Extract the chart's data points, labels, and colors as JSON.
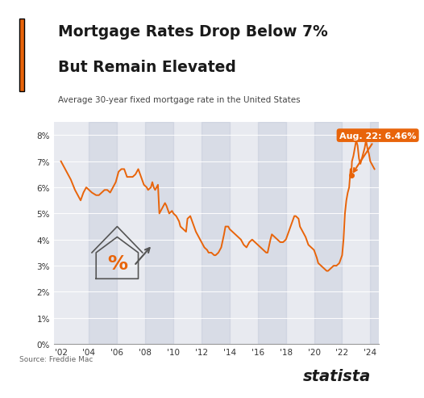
{
  "title_line1": "Mortgage Rates Drop Below 7%",
  "title_line2": "But Remain Elevated",
  "subtitle": "Average 30-year fixed mortgage rate in the United States",
  "annotation_label": "Aug. 22: 6.46%",
  "source": "Source: Freddie Mac",
  "brand": "statista",
  "line_color": "#E8640A",
  "background_color": "#FFFFFF",
  "plot_bg_color": "#E8EAF0",
  "title_color": "#1a1a1a",
  "subtitle_color": "#444444",
  "annotation_bg": "#E8640A",
  "annotation_text_color": "#FFFFFF",
  "accent_bar_color": "#E8640A",
  "yticks": [
    0,
    1,
    2,
    3,
    4,
    5,
    6,
    7,
    8
  ],
  "ytick_labels": [
    "0%",
    "1%",
    "2%",
    "3%",
    "4%",
    "5%",
    "6%",
    "7%",
    "8%"
  ],
  "xtick_labels": [
    "'02",
    "'04",
    "'06",
    "'08",
    "'10",
    "'12",
    "'14",
    "'16",
    "'18",
    "'20",
    "'22",
    "'24"
  ],
  "ylim": [
    0,
    8.5
  ],
  "data": [
    [
      2002.0,
      7.0
    ],
    [
      2002.2,
      6.8
    ],
    [
      2002.5,
      6.5
    ],
    [
      2002.7,
      6.3
    ],
    [
      2003.0,
      5.9
    ],
    [
      2003.2,
      5.7
    ],
    [
      2003.4,
      5.5
    ],
    [
      2003.6,
      5.8
    ],
    [
      2003.8,
      6.0
    ],
    [
      2004.0,
      5.9
    ],
    [
      2004.2,
      5.8
    ],
    [
      2004.5,
      5.7
    ],
    [
      2004.7,
      5.7
    ],
    [
      2004.9,
      5.8
    ],
    [
      2005.1,
      5.9
    ],
    [
      2005.3,
      5.9
    ],
    [
      2005.5,
      5.8
    ],
    [
      2005.7,
      6.0
    ],
    [
      2005.9,
      6.2
    ],
    [
      2006.1,
      6.6
    ],
    [
      2006.3,
      6.7
    ],
    [
      2006.5,
      6.7
    ],
    [
      2006.7,
      6.4
    ],
    [
      2006.9,
      6.4
    ],
    [
      2007.1,
      6.4
    ],
    [
      2007.3,
      6.5
    ],
    [
      2007.5,
      6.7
    ],
    [
      2007.7,
      6.4
    ],
    [
      2007.9,
      6.1
    ],
    [
      2008.1,
      6.0
    ],
    [
      2008.2,
      5.9
    ],
    [
      2008.4,
      6.0
    ],
    [
      2008.5,
      6.2
    ],
    [
      2008.6,
      6.0
    ],
    [
      2008.7,
      5.9
    ],
    [
      2008.9,
      6.1
    ],
    [
      2009.0,
      5.0
    ],
    [
      2009.2,
      5.2
    ],
    [
      2009.4,
      5.4
    ],
    [
      2009.5,
      5.3
    ],
    [
      2009.7,
      5.0
    ],
    [
      2009.9,
      5.1
    ],
    [
      2010.0,
      5.0
    ],
    [
      2010.2,
      4.9
    ],
    [
      2010.4,
      4.7
    ],
    [
      2010.5,
      4.5
    ],
    [
      2010.7,
      4.4
    ],
    [
      2010.9,
      4.3
    ],
    [
      2011.0,
      4.8
    ],
    [
      2011.2,
      4.9
    ],
    [
      2011.4,
      4.6
    ],
    [
      2011.6,
      4.3
    ],
    [
      2011.8,
      4.1
    ],
    [
      2012.0,
      3.9
    ],
    [
      2012.2,
      3.7
    ],
    [
      2012.4,
      3.6
    ],
    [
      2012.5,
      3.5
    ],
    [
      2012.7,
      3.5
    ],
    [
      2012.9,
      3.4
    ],
    [
      2013.0,
      3.4
    ],
    [
      2013.2,
      3.5
    ],
    [
      2013.4,
      3.7
    ],
    [
      2013.6,
      4.2
    ],
    [
      2013.7,
      4.5
    ],
    [
      2013.9,
      4.5
    ],
    [
      2014.0,
      4.4
    ],
    [
      2014.2,
      4.3
    ],
    [
      2014.4,
      4.2
    ],
    [
      2014.6,
      4.1
    ],
    [
      2014.8,
      4.0
    ],
    [
      2015.0,
      3.8
    ],
    [
      2015.2,
      3.7
    ],
    [
      2015.4,
      3.9
    ],
    [
      2015.6,
      4.0
    ],
    [
      2015.8,
      3.9
    ],
    [
      2016.0,
      3.8
    ],
    [
      2016.2,
      3.7
    ],
    [
      2016.4,
      3.6
    ],
    [
      2016.6,
      3.5
    ],
    [
      2016.7,
      3.5
    ],
    [
      2016.9,
      4.0
    ],
    [
      2017.0,
      4.2
    ],
    [
      2017.2,
      4.1
    ],
    [
      2017.4,
      4.0
    ],
    [
      2017.6,
      3.9
    ],
    [
      2017.8,
      3.9
    ],
    [
      2018.0,
      4.0
    ],
    [
      2018.2,
      4.3
    ],
    [
      2018.4,
      4.6
    ],
    [
      2018.6,
      4.9
    ],
    [
      2018.7,
      4.9
    ],
    [
      2018.9,
      4.8
    ],
    [
      2019.0,
      4.5
    ],
    [
      2019.2,
      4.3
    ],
    [
      2019.4,
      4.1
    ],
    [
      2019.6,
      3.8
    ],
    [
      2019.8,
      3.7
    ],
    [
      2020.0,
      3.6
    ],
    [
      2020.2,
      3.3
    ],
    [
      2020.3,
      3.1
    ],
    [
      2020.5,
      3.0
    ],
    [
      2020.7,
      2.9
    ],
    [
      2020.9,
      2.8
    ],
    [
      2021.0,
      2.8
    ],
    [
      2021.2,
      2.9
    ],
    [
      2021.4,
      3.0
    ],
    [
      2021.6,
      3.0
    ],
    [
      2021.8,
      3.1
    ],
    [
      2022.0,
      3.4
    ],
    [
      2022.1,
      4.0
    ],
    [
      2022.2,
      5.0
    ],
    [
      2022.3,
      5.5
    ],
    [
      2022.4,
      5.8
    ],
    [
      2022.5,
      6.0
    ],
    [
      2022.6,
      6.7
    ],
    [
      2022.65,
      6.46
    ],
    [
      2022.7,
      7.0
    ],
    [
      2022.8,
      7.2
    ],
    [
      2022.9,
      7.5
    ],
    [
      2023.0,
      7.8
    ],
    [
      2023.1,
      7.6
    ],
    [
      2023.2,
      7.1
    ],
    [
      2023.3,
      6.9
    ],
    [
      2023.4,
      7.1
    ],
    [
      2023.6,
      7.5
    ],
    [
      2023.7,
      7.8
    ],
    [
      2023.8,
      7.5
    ],
    [
      2023.9,
      7.3
    ],
    [
      2024.0,
      7.0
    ],
    [
      2024.1,
      6.9
    ],
    [
      2024.2,
      6.8
    ],
    [
      2024.3,
      6.7
    ]
  ]
}
